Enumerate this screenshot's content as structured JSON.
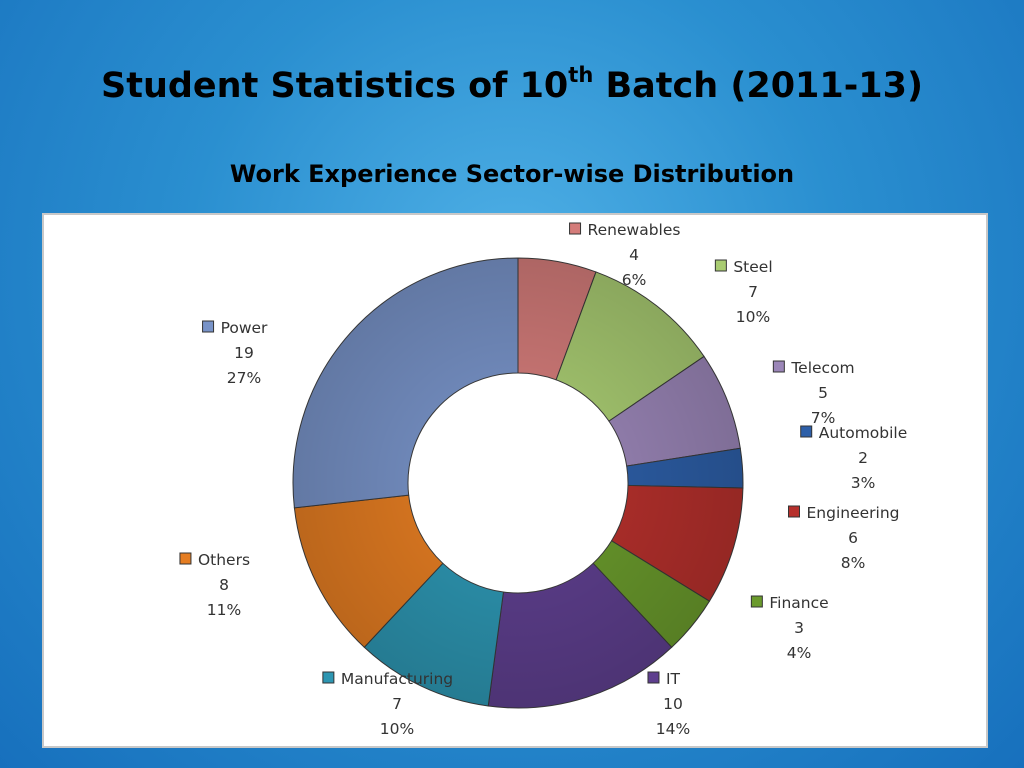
{
  "slide": {
    "title_main": "Student Statistics of 10",
    "title_sup": "th",
    "title_rest": " Batch (2011-13)",
    "subtitle": "Work Experience Sector-wise Distribution"
  },
  "chart_data": {
    "type": "pie",
    "variant": "donut",
    "title": "",
    "slices": [
      {
        "label": "Renewables",
        "value": 4,
        "percent": "6%",
        "color": "#d47c7a"
      },
      {
        "label": "Steel",
        "value": 7,
        "percent": "10%",
        "color": "#a9cc72"
      },
      {
        "label": "Telecom",
        "value": 5,
        "percent": "7%",
        "color": "#9b86b8"
      },
      {
        "label": "Automobile",
        "value": 2,
        "percent": "3%",
        "color": "#2d5fa8"
      },
      {
        "label": "Engineering",
        "value": 6,
        "percent": "8%",
        "color": "#b6302c"
      },
      {
        "label": "Finance",
        "value": 3,
        "percent": "4%",
        "color": "#6a9a2c"
      },
      {
        "label": "IT",
        "value": 10,
        "percent": "14%",
        "color": "#5e3f8e"
      },
      {
        "label": "Manufacturing",
        "value": 7,
        "percent": "10%",
        "color": "#2d96b2"
      },
      {
        "label": "Others",
        "value": 8,
        "percent": "11%",
        "color": "#e57d22"
      },
      {
        "label": "Power",
        "value": 19,
        "percent": "27%",
        "color": "#7893c8"
      }
    ]
  }
}
